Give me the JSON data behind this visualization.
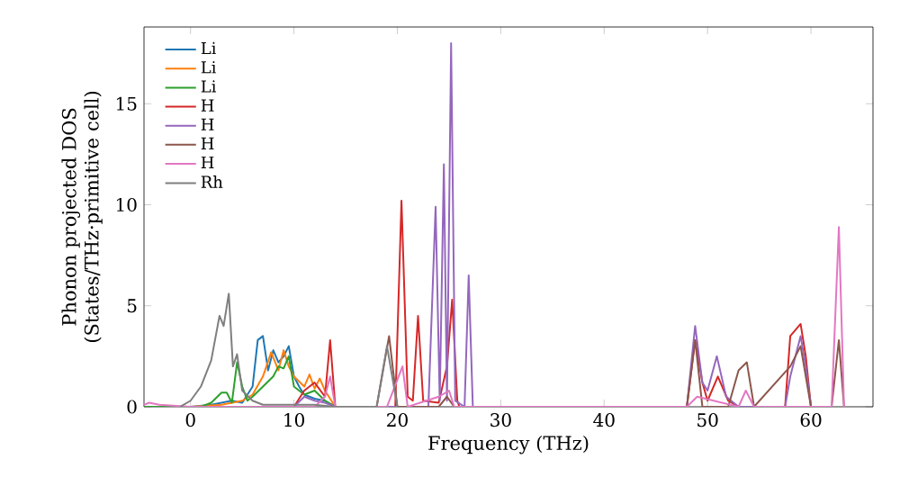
{
  "chart_data": {
    "type": "line",
    "xlabel": "Frequency (THz)",
    "ylabel": "Phonon projected DOS (States/THz·primitive cell)",
    "xlim": [
      -4.5,
      66
    ],
    "ylim": [
      0,
      18.8
    ],
    "xticks": [
      0,
      10,
      20,
      30,
      40,
      50,
      60
    ],
    "yticks": [
      0,
      5,
      10,
      15
    ],
    "grid": false,
    "legend": "top left",
    "line_style": "solid",
    "series": [
      {
        "name": "Li",
        "color": "#1f77b4",
        "x": [
          -4.5,
          0,
          2,
          4,
          5,
          6,
          6.5,
          7,
          7.5,
          8,
          8.5,
          9,
          9.5,
          10,
          10.5,
          11,
          12,
          13,
          14
        ],
        "values": [
          0,
          0,
          0.1,
          0.3,
          0.2,
          1.0,
          3.3,
          3.5,
          1.8,
          2.8,
          2.2,
          2.5,
          3.0,
          1.5,
          1.0,
          0.6,
          0.4,
          0.3,
          0
        ]
      },
      {
        "name": "Li",
        "color": "#ff7f0e",
        "x": [
          -4.5,
          0,
          3,
          4,
          5,
          6,
          7,
          7.8,
          8.5,
          9,
          9.5,
          10,
          11,
          11.5,
          12,
          12.5,
          13,
          14
        ],
        "values": [
          0,
          0,
          0.1,
          0.2,
          0.3,
          0.6,
          1.5,
          2.7,
          1.8,
          2.8,
          2.0,
          1.5,
          1.0,
          1.6,
          0.9,
          1.4,
          0.8,
          0
        ]
      },
      {
        "name": "Li",
        "color": "#2ca02c",
        "x": [
          -4.5,
          1,
          2,
          3,
          3.5,
          4,
          4.5,
          5,
          5.5,
          6,
          7,
          8,
          8.5,
          9,
          9.5,
          10,
          11,
          12,
          13,
          14
        ],
        "values": [
          0,
          0,
          0.2,
          0.7,
          0.7,
          0.2,
          2.2,
          1.0,
          0.3,
          0.5,
          1.0,
          1.5,
          2.0,
          1.9,
          2.5,
          1.0,
          0.6,
          0.8,
          0.3,
          0
        ]
      },
      {
        "name": "H",
        "color": "#d62728",
        "x": [
          10,
          11,
          12,
          13,
          13.5,
          14,
          19.8,
          20.4,
          21,
          21.5,
          22,
          22.5,
          24,
          24.8,
          25.3,
          25.8,
          26,
          48,
          48.8,
          49.5,
          50,
          51,
          52,
          53,
          57.5,
          58,
          59,
          59.5,
          60
        ],
        "values": [
          0,
          0.8,
          1.2,
          0.5,
          3.3,
          0,
          0,
          10.2,
          0.5,
          0.3,
          4.5,
          0.3,
          0.2,
          2.0,
          5.3,
          0.3,
          0,
          0,
          3.3,
          1.2,
          0.3,
          1.5,
          0.3,
          0,
          0,
          3.5,
          4.1,
          2.5,
          0
        ]
      },
      {
        "name": "H",
        "color": "#9467bd",
        "x": [
          10,
          11,
          12,
          13,
          14,
          23,
          23.7,
          24.1,
          24.5,
          24.8,
          25.2,
          25.6,
          26.5,
          26.9,
          27.3,
          48,
          48.8,
          49.5,
          50,
          50.9,
          51.8,
          53,
          57.5,
          58,
          59,
          59.5,
          60
        ],
        "values": [
          0,
          0.5,
          0.3,
          0.2,
          0,
          0,
          9.9,
          0.3,
          12.0,
          0.3,
          18.0,
          0.3,
          0,
          6.5,
          0,
          0,
          4.0,
          1.2,
          0.8,
          2.5,
          0.5,
          0,
          0,
          1.5,
          3.5,
          2.0,
          0
        ]
      },
      {
        "name": "H",
        "color": "#8c564b",
        "x": [
          18,
          19.2,
          20,
          24,
          24.8,
          25.5,
          48,
          48.8,
          49.5,
          52,
          53,
          53.8,
          54.5,
          58,
          59,
          60,
          62,
          62.7,
          63.2
        ],
        "values": [
          0,
          3.5,
          0,
          0,
          0.5,
          0,
          0,
          3.3,
          0,
          0,
          1.8,
          2.2,
          0,
          2.0,
          3.0,
          0,
          0,
          3.3,
          0
        ]
      },
      {
        "name": "H",
        "color": "#e377c2",
        "x": [
          -4.5,
          -4,
          -3,
          0,
          12,
          13,
          13.5,
          14,
          19,
          20.5,
          21,
          24,
          25,
          25.5,
          48,
          49,
          53,
          53.7,
          54.5,
          62,
          62.7,
          63.2
        ],
        "values": [
          0.1,
          0.2,
          0.1,
          0,
          0,
          0.5,
          1.5,
          0,
          0,
          2.0,
          0,
          0.5,
          0.8,
          0,
          0,
          0.5,
          0,
          0.8,
          0,
          0,
          8.9,
          0
        ]
      },
      {
        "name": "Rh",
        "color": "#7f7f7f",
        "x": [
          -1,
          0,
          1,
          2,
          2.8,
          3.2,
          3.7,
          4.1,
          4.5,
          5,
          6,
          7,
          10,
          12,
          14,
          18,
          19,
          20
        ],
        "values": [
          0,
          0.3,
          1.0,
          2.3,
          4.5,
          4.0,
          5.6,
          2.0,
          2.6,
          0.8,
          0.3,
          0.1,
          0.1,
          0.1,
          0,
          0,
          3.0,
          0
        ]
      }
    ]
  }
}
